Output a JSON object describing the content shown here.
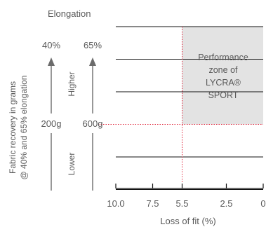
{
  "chart_data": {
    "type": "area",
    "title": "",
    "xlabel": "Loss of fit (%)",
    "x_ticks": [
      10.0,
      7.5,
      5.5,
      2.5,
      0
    ],
    "x_tick_labels": [
      "10.0",
      "7.5",
      "5.5",
      "2.5",
      "0"
    ],
    "x_reversed": true,
    "elongation_label": "Elongation",
    "elongation_values": [
      "40%",
      "65%"
    ],
    "recovery_values": [
      "200g",
      "600g"
    ],
    "ylabel_line1": "Fabric recovery in grams",
    "ylabel_line2": "@ 40% and 65% elongation",
    "higher_label": "Higher",
    "lower_label": "Lower",
    "gridlines": 5,
    "threshold_x": 5.5,
    "threshold_recovery": "600g",
    "zone": {
      "label_lines": [
        "Performance",
        "zone of",
        "LYCRA®",
        "SPORT"
      ],
      "x_range": [
        5.5,
        0
      ],
      "fill": "#e3e3e3"
    },
    "colors": {
      "text": "#595959",
      "gridline": "#111111",
      "threshold": "#e0243a",
      "arrow": "#6b6b6b"
    }
  }
}
